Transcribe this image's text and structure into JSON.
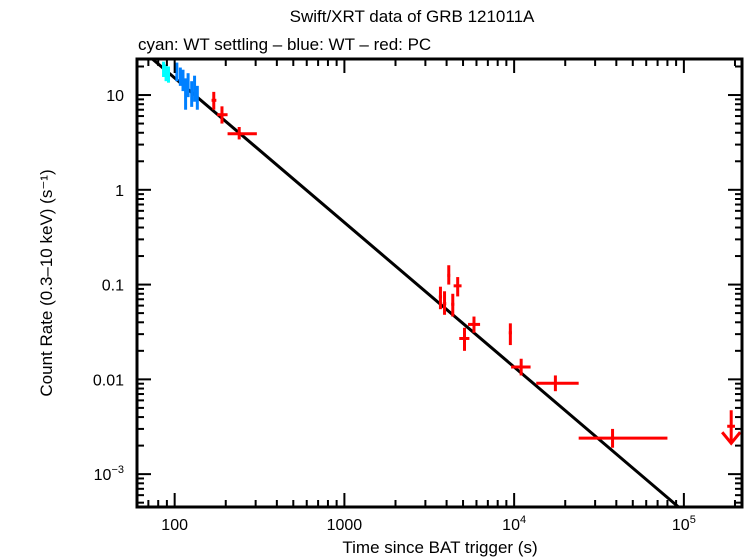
{
  "chart_data": {
    "type": "scatter",
    "title": "Swift/XRT data of GRB 121011A",
    "subtitle": "cyan: WT settling – blue: WT – red: PC",
    "xlabel": "Time since BAT trigger (s)",
    "ylabel": "Count Rate (0.3–10 keV) (s⁻¹)",
    "xscale": "log",
    "yscale": "log",
    "xlim": [
      60,
      220000
    ],
    "ylim": [
      0.00045,
      24
    ],
    "grid": false,
    "x_ticks": [
      {
        "value": 100,
        "label": "100"
      },
      {
        "value": 1000,
        "label": "1000"
      },
      {
        "value": 10000,
        "label": "10",
        "exp": "4"
      },
      {
        "value": 100000,
        "label": "10",
        "exp": "5"
      }
    ],
    "y_ticks": [
      {
        "value": 10,
        "label": "10"
      },
      {
        "value": 1,
        "label": "1"
      },
      {
        "value": 0.1,
        "label": "0.1"
      },
      {
        "value": 0.01,
        "label": "0.01"
      },
      {
        "value": 0.001,
        "label": "10",
        "exp": "−3"
      }
    ],
    "colors": {
      "wt_settling": "#00ffff",
      "wt": "#0080ff",
      "pc": "#ff0000",
      "model": "#000000",
      "axes": "#000000"
    },
    "series": [
      {
        "name": "WT settling",
        "color_key": "wt_settling",
        "points": [
          {
            "x": 86,
            "xlo": 85,
            "xhi": 87,
            "y": 18.5,
            "ylo": 15.5,
            "yhi": 22.5
          },
          {
            "x": 89,
            "xlo": 88,
            "xhi": 90,
            "y": 17.0,
            "ylo": 14.0,
            "yhi": 21.0
          },
          {
            "x": 92,
            "xlo": 91,
            "xhi": 93,
            "y": 16.0,
            "ylo": 13.5,
            "yhi": 20.0
          }
        ]
      },
      {
        "name": "WT",
        "color_key": "wt",
        "points": [
          {
            "x": 103,
            "xlo": 102,
            "xhi": 104,
            "y": 17.5,
            "ylo": 14.0,
            "yhi": 22.0
          },
          {
            "x": 108,
            "xlo": 107,
            "xhi": 109,
            "y": 15.5,
            "ylo": 12.5,
            "yhi": 19.5
          },
          {
            "x": 112,
            "xlo": 111,
            "xhi": 113,
            "y": 14.5,
            "ylo": 11.0,
            "yhi": 18.5
          },
          {
            "x": 116,
            "xlo": 115,
            "xhi": 117,
            "y": 11.0,
            "ylo": 7.0,
            "yhi": 15.0
          },
          {
            "x": 120,
            "xlo": 119,
            "xhi": 121,
            "y": 13.0,
            "ylo": 9.5,
            "yhi": 17.0
          },
          {
            "x": 126,
            "xlo": 125,
            "xhi": 127,
            "y": 10.5,
            "ylo": 7.5,
            "yhi": 14.0
          },
          {
            "x": 131,
            "xlo": 130,
            "xhi": 132,
            "y": 12.0,
            "ylo": 8.5,
            "yhi": 16.0
          },
          {
            "x": 136,
            "xlo": 135,
            "xhi": 137,
            "y": 9.5,
            "ylo": 7.0,
            "yhi": 12.5
          }
        ]
      },
      {
        "name": "PC",
        "color_key": "pc",
        "points": [
          {
            "x": 170,
            "xlo": 165,
            "xhi": 176,
            "y": 8.8,
            "ylo": 7.0,
            "yhi": 10.8
          },
          {
            "x": 190,
            "xlo": 178,
            "xhi": 205,
            "y": 6.2,
            "ylo": 5.0,
            "yhi": 7.6
          },
          {
            "x": 240,
            "xlo": 205,
            "xhi": 305,
            "y": 3.9,
            "ylo": 3.4,
            "yhi": 4.6
          },
          {
            "x": 3680,
            "xlo": 3600,
            "xhi": 3760,
            "y": 0.074,
            "ylo": 0.055,
            "yhi": 0.095
          },
          {
            "x": 3890,
            "xlo": 3800,
            "xhi": 3980,
            "y": 0.063,
            "ylo": 0.048,
            "yhi": 0.085
          },
          {
            "x": 4120,
            "xlo": 4040,
            "xhi": 4200,
            "y": 0.125,
            "ylo": 0.1,
            "yhi": 0.16
          },
          {
            "x": 4350,
            "xlo": 4260,
            "xhi": 4440,
            "y": 0.062,
            "ylo": 0.046,
            "yhi": 0.08
          },
          {
            "x": 4650,
            "xlo": 4400,
            "xhi": 4900,
            "y": 0.097,
            "ylo": 0.075,
            "yhi": 0.12
          },
          {
            "x": 5100,
            "xlo": 4750,
            "xhi": 5450,
            "y": 0.027,
            "ylo": 0.02,
            "yhi": 0.035
          },
          {
            "x": 5800,
            "xlo": 5350,
            "xhi": 6300,
            "y": 0.038,
            "ylo": 0.031,
            "yhi": 0.046
          },
          {
            "x": 9500,
            "xlo": 9300,
            "xhi": 9700,
            "y": 0.031,
            "ylo": 0.023,
            "yhi": 0.039
          },
          {
            "x": 11000,
            "xlo": 9600,
            "xhi": 12500,
            "y": 0.0135,
            "ylo": 0.011,
            "yhi": 0.0165
          },
          {
            "x": 17500,
            "xlo": 13500,
            "xhi": 24000,
            "y": 0.0091,
            "ylo": 0.0075,
            "yhi": 0.011
          },
          {
            "x": 38000,
            "xlo": 24000,
            "xhi": 80000,
            "y": 0.0024,
            "ylo": 0.0019,
            "yhi": 0.003
          }
        ]
      }
    ],
    "upper_limits": [
      {
        "name": "PC upper limit",
        "color_key": "pc",
        "x": 190000,
        "xlo": 180000,
        "xhi": 200000,
        "y": 0.0032
      }
    ],
    "model": {
      "name": "power-law fit",
      "color_key": "model",
      "points": [
        {
          "x": 60,
          "y": 33.0
        },
        {
          "x": 93000,
          "y": 0.00045
        }
      ]
    }
  }
}
